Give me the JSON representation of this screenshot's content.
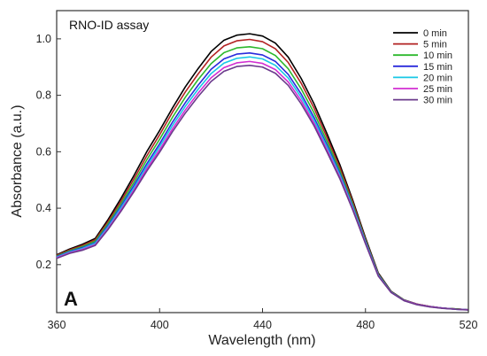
{
  "chart_data": {
    "type": "line",
    "title": "RNO-ID assay",
    "panel_label": "A",
    "xlabel": "Wavelength (nm)",
    "ylabel": "Absorbance (a.u.)",
    "xlim": [
      360,
      520
    ],
    "ylim": [
      0.03,
      1.1
    ],
    "xticks": [
      360,
      400,
      440,
      480,
      520
    ],
    "yticks": [
      0.2,
      0.4,
      0.6,
      0.8,
      1.0
    ],
    "xtick_labels": [
      "360",
      "400",
      "440",
      "480",
      "520"
    ],
    "ytick_labels": [
      "0.2",
      "0.4",
      "0.6",
      "0.8",
      "1.0"
    ],
    "grid": false,
    "legend_position": "top-right",
    "x": [
      360,
      365,
      370,
      375,
      380,
      385,
      390,
      395,
      400,
      405,
      410,
      415,
      420,
      425,
      430,
      435,
      440,
      445,
      450,
      455,
      460,
      465,
      470,
      475,
      480,
      485,
      490,
      495,
      500,
      505,
      510,
      515,
      520
    ],
    "series": [
      {
        "name": "0 min",
        "color": "#000000",
        "values": [
          0.235,
          0.255,
          0.272,
          0.293,
          0.36,
          0.435,
          0.515,
          0.6,
          0.675,
          0.755,
          0.83,
          0.895,
          0.955,
          0.995,
          1.013,
          1.018,
          1.01,
          0.985,
          0.935,
          0.86,
          0.77,
          0.665,
          0.555,
          0.43,
          0.295,
          0.17,
          0.105,
          0.075,
          0.06,
          0.052,
          0.046,
          0.043,
          0.04
        ]
      },
      {
        "name": "5 min",
        "color": "#b22222",
        "values": [
          0.233,
          0.252,
          0.268,
          0.288,
          0.353,
          0.425,
          0.503,
          0.585,
          0.66,
          0.74,
          0.812,
          0.876,
          0.935,
          0.975,
          0.993,
          0.998,
          0.99,
          0.965,
          0.916,
          0.843,
          0.755,
          0.652,
          0.545,
          0.423,
          0.29,
          0.167,
          0.104,
          0.074,
          0.06,
          0.052,
          0.046,
          0.043,
          0.04
        ]
      },
      {
        "name": "10 min",
        "color": "#2db82d",
        "values": [
          0.23,
          0.249,
          0.264,
          0.283,
          0.346,
          0.416,
          0.491,
          0.571,
          0.644,
          0.722,
          0.793,
          0.856,
          0.912,
          0.951,
          0.968,
          0.972,
          0.965,
          0.941,
          0.894,
          0.823,
          0.738,
          0.638,
          0.534,
          0.415,
          0.286,
          0.165,
          0.103,
          0.074,
          0.059,
          0.051,
          0.046,
          0.043,
          0.04
        ]
      },
      {
        "name": "15 min",
        "color": "#2a2adc",
        "values": [
          0.228,
          0.246,
          0.26,
          0.278,
          0.339,
          0.407,
          0.48,
          0.557,
          0.628,
          0.705,
          0.774,
          0.836,
          0.892,
          0.929,
          0.946,
          0.95,
          0.943,
          0.92,
          0.874,
          0.805,
          0.722,
          0.625,
          0.524,
          0.408,
          0.282,
          0.163,
          0.102,
          0.073,
          0.059,
          0.051,
          0.046,
          0.042,
          0.04
        ]
      },
      {
        "name": "20 min",
        "color": "#19c8e6",
        "values": [
          0.226,
          0.244,
          0.257,
          0.275,
          0.334,
          0.401,
          0.472,
          0.548,
          0.618,
          0.693,
          0.761,
          0.822,
          0.877,
          0.914,
          0.931,
          0.936,
          0.929,
          0.906,
          0.861,
          0.793,
          0.712,
          0.617,
          0.518,
          0.404,
          0.279,
          0.162,
          0.102,
          0.073,
          0.059,
          0.051,
          0.046,
          0.042,
          0.04
        ]
      },
      {
        "name": "25 min",
        "color": "#d22ed2",
        "values": [
          0.224,
          0.242,
          0.254,
          0.271,
          0.329,
          0.394,
          0.464,
          0.539,
          0.607,
          0.681,
          0.748,
          0.808,
          0.862,
          0.898,
          0.915,
          0.92,
          0.913,
          0.891,
          0.847,
          0.781,
          0.701,
          0.608,
          0.511,
          0.399,
          0.276,
          0.16,
          0.101,
          0.073,
          0.059,
          0.051,
          0.046,
          0.042,
          0.04
        ]
      },
      {
        "name": "30 min",
        "color": "#6b3a8c",
        "values": [
          0.222,
          0.24,
          0.251,
          0.268,
          0.325,
          0.389,
          0.458,
          0.531,
          0.598,
          0.671,
          0.737,
          0.796,
          0.849,
          0.885,
          0.902,
          0.906,
          0.9,
          0.878,
          0.835,
          0.77,
          0.692,
          0.6,
          0.505,
          0.395,
          0.274,
          0.159,
          0.101,
          0.072,
          0.058,
          0.05,
          0.045,
          0.042,
          0.039
        ]
      }
    ]
  }
}
